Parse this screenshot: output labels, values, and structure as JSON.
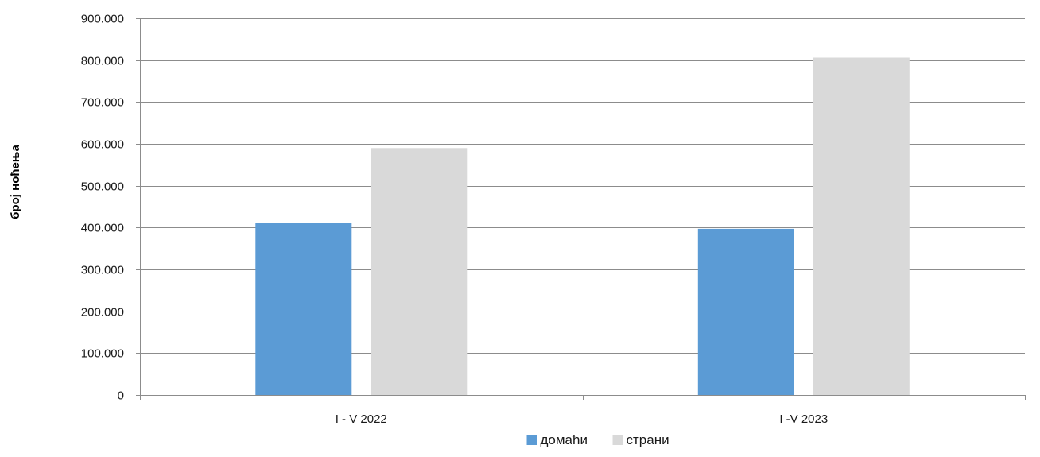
{
  "chart_data": {
    "type": "bar",
    "title": "",
    "xlabel": "",
    "ylabel": "број ноћења",
    "categories": [
      "I - V 2022",
      "I -V 2023"
    ],
    "series": [
      {
        "name": "домаћи",
        "color": "#5b9bd5",
        "values": [
          411000,
          397000
        ]
      },
      {
        "name": "страни",
        "color": "#d9d9d9",
        "values": [
          590000,
          806000
        ]
      }
    ],
    "ylim": [
      0,
      900000
    ],
    "yticks": [
      0,
      100000,
      200000,
      300000,
      400000,
      500000,
      600000,
      700000,
      800000,
      900000
    ],
    "ytick_labels": [
      "0",
      "100.000",
      "200.000",
      "300.000",
      "400.000",
      "500.000",
      "600.000",
      "700.000",
      "800.000",
      "900.000"
    ],
    "grid": true,
    "legend_position": "bottom"
  }
}
